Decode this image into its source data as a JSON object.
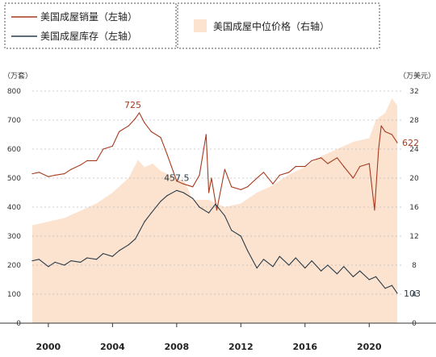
{
  "chart_data": {
    "type": "line",
    "units": {
      "left": "（万套）",
      "right": "（万美元）"
    },
    "left_axis": {
      "ylim": [
        0,
        800
      ],
      "ticks": [
        "0",
        "100",
        "200",
        "300",
        "400",
        "500",
        "600",
        "700",
        "800"
      ]
    },
    "right_axis": {
      "ylim": [
        0,
        32
      ],
      "ticks": [
        "0",
        "4",
        "8",
        "12",
        "16",
        "20",
        "24",
        "28",
        "32"
      ]
    },
    "x_ticks": [
      "2000",
      "2004",
      "2008",
      "2012",
      "2016",
      "2020"
    ],
    "grid": true,
    "legend_position": "top",
    "series": [
      {
        "name": "美国成屋销量（左轴）",
        "axis": "left",
        "color": "#a83a1e",
        "x": [
          "1999-01",
          "1999-06",
          "2000-01",
          "2000-06",
          "2001-01",
          "2001-06",
          "2002-01",
          "2002-06",
          "2003-01",
          "2003-06",
          "2004-01",
          "2004-06",
          "2005-01",
          "2005-06",
          "2005-09",
          "2006-01",
          "2006-06",
          "2007-01",
          "2007-06",
          "2008-01",
          "2008-06",
          "2009-01",
          "2009-06",
          "2009-11",
          "2010-01",
          "2010-03",
          "2010-07",
          "2011-01",
          "2011-06",
          "2012-01",
          "2012-06",
          "2013-01",
          "2013-06",
          "2014-01",
          "2014-06",
          "2015-01",
          "2015-06",
          "2016-01",
          "2016-06",
          "2017-01",
          "2017-06",
          "2018-01",
          "2018-06",
          "2019-01",
          "2019-06",
          "2020-01",
          "2020-05",
          "2020-08",
          "2020-10",
          "2021-01",
          "2021-06",
          "2021-10"
        ],
        "values": [
          515,
          520,
          505,
          510,
          515,
          530,
          545,
          560,
          560,
          600,
          610,
          660,
          680,
          705,
          725,
          690,
          660,
          640,
          580,
          490,
          480,
          470,
          510,
          650,
          450,
          500,
          390,
          530,
          470,
          460,
          470,
          500,
          520,
          480,
          510,
          520,
          540,
          540,
          560,
          570,
          550,
          570,
          540,
          500,
          540,
          550,
          390,
          600,
          680,
          660,
          650,
          622
        ]
      },
      {
        "name": "美国成屋库存（左轴）",
        "axis": "left",
        "color": "#2a3a48",
        "x": [
          "1999-01",
          "1999-06",
          "2000-01",
          "2000-06",
          "2001-01",
          "2001-06",
          "2002-01",
          "2002-06",
          "2003-01",
          "2003-06",
          "2004-01",
          "2004-06",
          "2005-01",
          "2005-06",
          "2006-01",
          "2006-06",
          "2007-01",
          "2007-06",
          "2008-01",
          "2008-06",
          "2009-01",
          "2009-06",
          "2010-01",
          "2010-06",
          "2011-01",
          "2011-06",
          "2012-01",
          "2012-06",
          "2013-01",
          "2013-06",
          "2014-01",
          "2014-06",
          "2015-01",
          "2015-06",
          "2016-01",
          "2016-06",
          "2017-01",
          "2017-06",
          "2018-01",
          "2018-06",
          "2019-01",
          "2019-06",
          "2020-01",
          "2020-06",
          "2021-01",
          "2021-06",
          "2021-10"
        ],
        "values": [
          215,
          220,
          195,
          210,
          200,
          215,
          210,
          225,
          220,
          240,
          230,
          250,
          270,
          290,
          350,
          380,
          420,
          440,
          457.5,
          450,
          430,
          400,
          380,
          410,
          370,
          320,
          300,
          250,
          190,
          220,
          195,
          230,
          200,
          225,
          190,
          215,
          180,
          200,
          170,
          195,
          160,
          180,
          150,
          160,
          120,
          130,
          103
        ]
      },
      {
        "name": "美国成屋中位价格（右轴）",
        "axis": "right",
        "type": "area",
        "color": "#fbe3cf",
        "x": [
          "1999-01",
          "2000-01",
          "2001-01",
          "2002-01",
          "2003-01",
          "2004-01",
          "2005-01",
          "2005-08",
          "2006-01",
          "2006-07",
          "2007-01",
          "2008-01",
          "2008-07",
          "2009-01",
          "2010-01",
          "2011-01",
          "2012-01",
          "2013-01",
          "2014-01",
          "2015-01",
          "2016-01",
          "2017-01",
          "2018-01",
          "2019-01",
          "2020-01",
          "2020-06",
          "2021-01",
          "2021-06",
          "2021-10"
        ],
        "values": [
          13.5,
          14,
          14.5,
          15.5,
          16.5,
          18,
          20,
          22.5,
          21.5,
          22,
          21,
          20,
          19.5,
          17,
          17,
          16,
          16.5,
          18,
          19,
          20.5,
          21.5,
          23,
          24,
          25,
          25.5,
          28,
          29,
          31,
          30
        ]
      }
    ],
    "annotations": [
      {
        "text": "725",
        "series": 0,
        "x": "2005-09",
        "y": 725
      },
      {
        "text": "457.5",
        "series": 1,
        "x": "2008-01",
        "y": 457.5
      },
      {
        "text": "622",
        "series": 0,
        "x": "2021-10",
        "y": 622
      },
      {
        "text": "103",
        "series": 1,
        "x": "2021-10",
        "y": 103
      }
    ]
  }
}
